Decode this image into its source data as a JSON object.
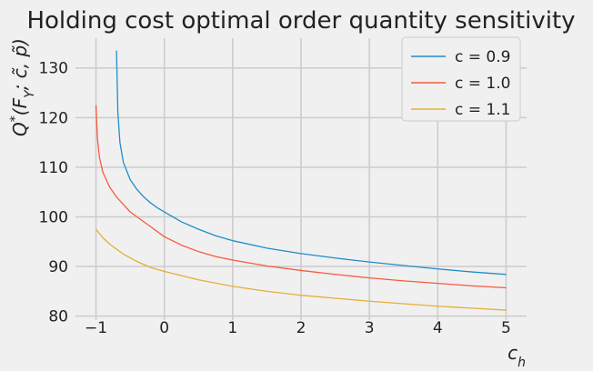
{
  "chart_data": {
    "type": "line",
    "title": "Holding cost optimal order quantity sensitivity",
    "xlabel": "c_h",
    "ylabel": "Q*(F_Y; c̃, p̃)",
    "xlim": [
      -1.3,
      5.3
    ],
    "ylim": [
      79.2,
      136
    ],
    "x_ticks": [
      -1,
      0,
      1,
      2,
      3,
      4,
      5
    ],
    "y_ticks": [
      80,
      90,
      100,
      110,
      120,
      130
    ],
    "grid": true,
    "legend_position": "top-right",
    "series": [
      {
        "name": "c = 0.9",
        "color": "#1f8ec9",
        "points": [
          [
            -0.7,
            133.5
          ],
          [
            -0.68,
            121
          ],
          [
            -0.65,
            115
          ],
          [
            -0.6,
            111
          ],
          [
            -0.5,
            107.5
          ],
          [
            -0.4,
            105.5
          ],
          [
            -0.3,
            104
          ],
          [
            -0.2,
            102.8
          ],
          [
            -0.1,
            101.8
          ],
          [
            0,
            101
          ],
          [
            0.25,
            99
          ],
          [
            0.5,
            97.5
          ],
          [
            0.75,
            96.2
          ],
          [
            1,
            95.2
          ],
          [
            1.5,
            93.7
          ],
          [
            2,
            92.6
          ],
          [
            2.5,
            91.7
          ],
          [
            3,
            90.9
          ],
          [
            3.5,
            90.2
          ],
          [
            4,
            89.5
          ],
          [
            4.5,
            88.9
          ],
          [
            5,
            88.4
          ]
        ]
      },
      {
        "name": "c = 1.0",
        "color": "#f55c3e",
        "points": [
          [
            -1.0,
            122.5
          ],
          [
            -0.98,
            116
          ],
          [
            -0.95,
            112
          ],
          [
            -0.9,
            109
          ],
          [
            -0.8,
            106
          ],
          [
            -0.7,
            104
          ],
          [
            -0.6,
            102.5
          ],
          [
            -0.5,
            101
          ],
          [
            -0.4,
            100
          ],
          [
            -0.2,
            98
          ],
          [
            0,
            96
          ],
          [
            0.25,
            94.3
          ],
          [
            0.5,
            93
          ],
          [
            0.75,
            92
          ],
          [
            1,
            91.3
          ],
          [
            1.5,
            90.1
          ],
          [
            2,
            89.2
          ],
          [
            2.5,
            88.4
          ],
          [
            3,
            87.7
          ],
          [
            3.5,
            87.1
          ],
          [
            4,
            86.6
          ],
          [
            4.5,
            86.1
          ],
          [
            5,
            85.7
          ]
        ]
      },
      {
        "name": "c = 1.1",
        "color": "#e5ae38",
        "points": [
          [
            -1.0,
            97.5
          ],
          [
            -0.9,
            95.8
          ],
          [
            -0.8,
            94.5
          ],
          [
            -0.6,
            92.5
          ],
          [
            -0.4,
            91
          ],
          [
            -0.2,
            89.8
          ],
          [
            0,
            89
          ],
          [
            0.5,
            87.3
          ],
          [
            1,
            86
          ],
          [
            1.5,
            85
          ],
          [
            2,
            84.2
          ],
          [
            2.5,
            83.6
          ],
          [
            3,
            83
          ],
          [
            3.5,
            82.5
          ],
          [
            4,
            82
          ],
          [
            4.5,
            81.6
          ],
          [
            5,
            81.2
          ]
        ]
      }
    ]
  }
}
